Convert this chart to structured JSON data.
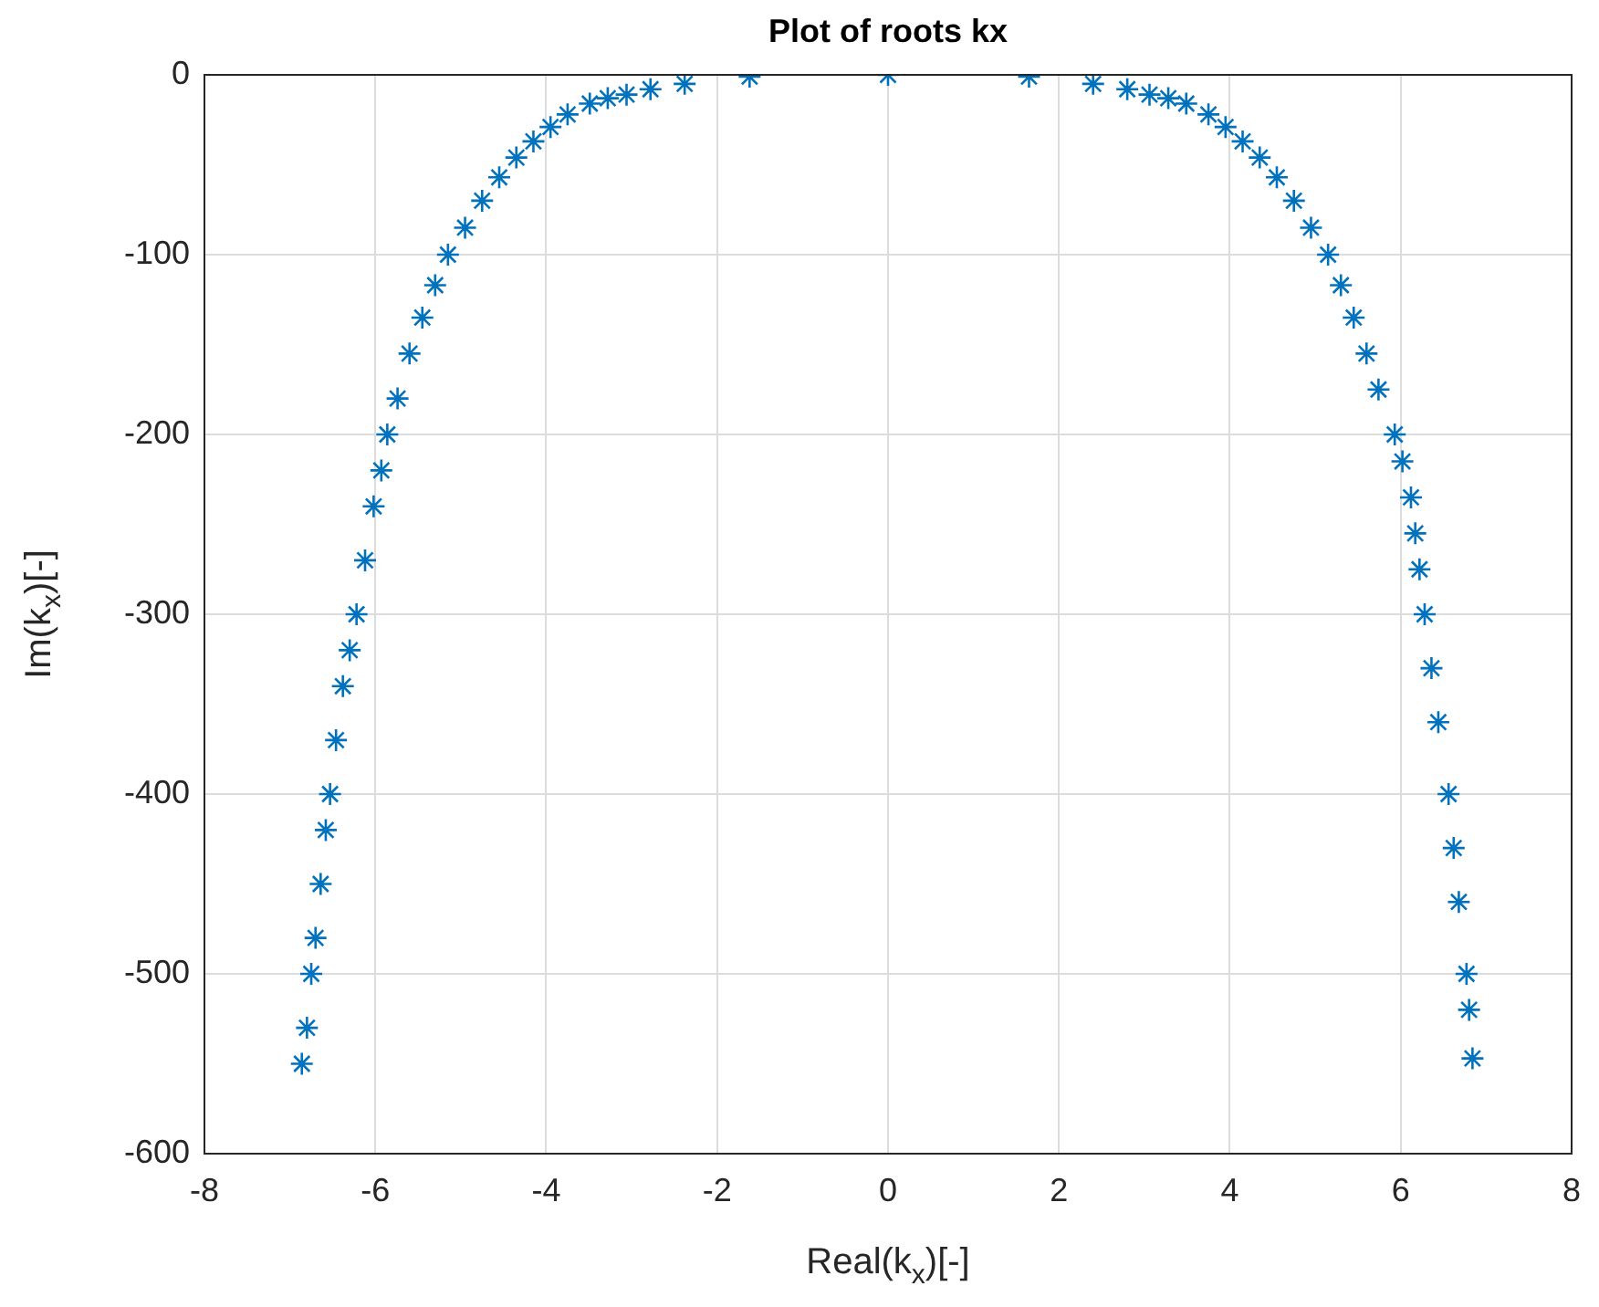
{
  "chart_data": {
    "type": "scatter",
    "title": "Plot of roots kx",
    "xlabel": "Real(k$_{x}$)[-]",
    "ylabel": "Im(k$_{x}$)[-]",
    "x": [
      -6.86,
      -6.8,
      -6.75,
      -6.7,
      -6.64,
      -6.58,
      -6.53,
      -6.46,
      -6.38,
      -6.3,
      -6.22,
      -6.12,
      -6.02,
      -5.93,
      -5.86,
      -5.74,
      -5.6,
      -5.45,
      -5.3,
      -5.15,
      -4.95,
      -4.75,
      -4.55,
      -4.35,
      -4.15,
      -3.95,
      -3.75,
      -3.49,
      -3.28,
      -3.06,
      -2.78,
      -2.38,
      -1.62,
      0,
      1.65,
      2.4,
      2.8,
      3.06,
      3.28,
      3.49,
      3.75,
      3.95,
      4.15,
      4.35,
      4.55,
      4.75,
      4.95,
      5.15,
      5.3,
      5.45,
      5.6,
      5.74,
      5.93,
      6.02,
      6.12,
      6.17,
      6.22,
      6.28,
      6.36,
      6.44,
      6.56,
      6.62,
      6.68,
      6.77,
      6.8,
      6.84
    ],
    "series": [
      {
        "color": "#0072bd",
        "values": [
          -550,
          -530,
          -500,
          -480,
          -450,
          -420,
          -400,
          -370,
          -340,
          -320,
          -300,
          -270,
          -240,
          -220,
          -200,
          -180,
          -155,
          -135,
          -117,
          -100,
          -85,
          -70,
          -57,
          -46,
          -37,
          -29,
          -22,
          -16,
          -13,
          -11,
          -8,
          -5,
          -1,
          0,
          -1,
          -5,
          -8,
          -11,
          -13,
          -16,
          -22,
          -29,
          -37,
          -46,
          -57,
          -70,
          -85,
          -100,
          -117,
          -135,
          -155,
          -175,
          -200,
          -215,
          -235,
          -255,
          -275,
          -300,
          -330,
          -360,
          -400,
          -430,
          -460,
          -500,
          -520,
          -547
        ]
      }
    ],
    "xlim": [
      -8,
      8
    ],
    "xticks": [
      -8,
      -6,
      -4,
      -2,
      0,
      2,
      4,
      6,
      8
    ],
    "ylim": [
      -600,
      0
    ],
    "yticks": [
      -600,
      -500,
      -400,
      -300,
      -200,
      -100,
      0
    ],
    "grid": true,
    "legend": false,
    "marker": "cross"
  }
}
